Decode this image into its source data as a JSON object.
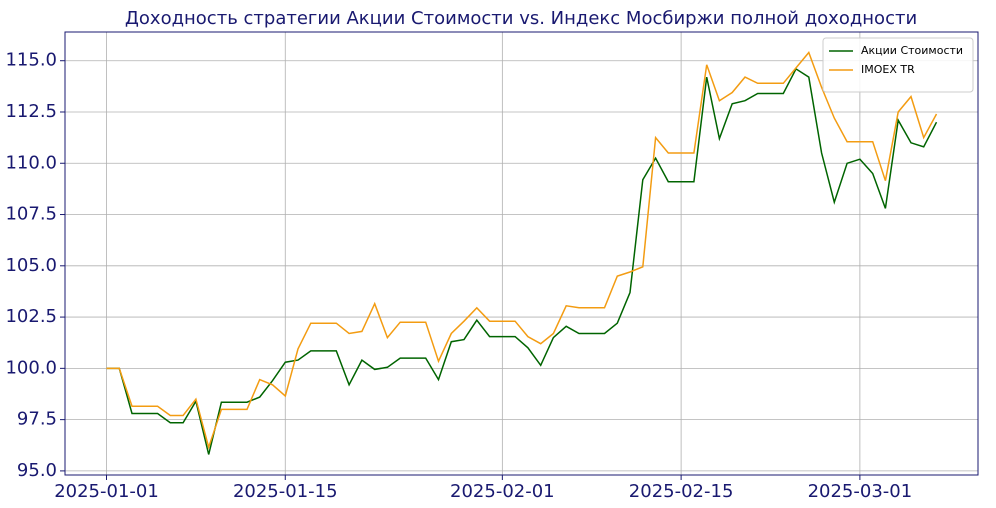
{
  "chart_data": {
    "type": "line",
    "title": "Доходность стратегии Акции Стоимости vs. Индекс Мосбиржи полной доходности",
    "x": [
      "2025-01-01",
      "2025-01-02",
      "2025-01-03",
      "2025-01-04",
      "2025-01-05",
      "2025-01-06",
      "2025-01-07",
      "2025-01-08",
      "2025-01-09",
      "2025-01-10",
      "2025-01-11",
      "2025-01-12",
      "2025-01-13",
      "2025-01-14",
      "2025-01-15",
      "2025-01-16",
      "2025-01-17",
      "2025-01-18",
      "2025-01-19",
      "2025-01-20",
      "2025-01-21",
      "2025-01-22",
      "2025-01-23",
      "2025-01-24",
      "2025-01-25",
      "2025-01-26",
      "2025-01-27",
      "2025-01-28",
      "2025-01-29",
      "2025-01-30",
      "2025-01-31",
      "2025-02-01",
      "2025-02-02",
      "2025-02-03",
      "2025-02-04",
      "2025-02-05",
      "2025-02-06",
      "2025-02-07",
      "2025-02-08",
      "2025-02-09",
      "2025-02-10",
      "2025-02-11",
      "2025-02-12",
      "2025-02-13",
      "2025-02-14",
      "2025-02-15",
      "2025-02-16",
      "2025-02-17",
      "2025-02-18",
      "2025-02-19",
      "2025-02-20",
      "2025-02-21",
      "2025-02-22",
      "2025-02-23",
      "2025-02-24",
      "2025-02-25",
      "2025-02-26",
      "2025-02-27",
      "2025-02-28",
      "2025-03-01",
      "2025-03-02",
      "2025-03-03",
      "2025-03-04",
      "2025-03-05",
      "2025-03-06",
      "2025-03-07"
    ],
    "series": [
      {
        "name": "Акции Стоимости",
        "color": "#006400",
        "values": [
          100.0,
          100.0,
          97.8,
          97.8,
          97.8,
          97.35,
          97.35,
          98.4,
          95.8,
          98.35,
          98.35,
          98.35,
          98.6,
          99.4,
          100.3,
          100.4,
          100.85,
          100.85,
          100.85,
          99.2,
          100.4,
          99.95,
          100.05,
          100.5,
          100.5,
          100.5,
          99.45,
          101.3,
          101.4,
          102.35,
          101.55,
          101.55,
          101.55,
          101.0,
          100.15,
          101.5,
          102.05,
          101.7,
          101.7,
          101.7,
          102.2,
          103.7,
          109.2,
          110.25,
          109.1,
          109.1,
          109.1,
          114.2,
          111.2,
          112.9,
          113.05,
          113.4,
          113.4,
          113.4,
          114.6,
          114.2,
          110.5,
          108.1,
          110.0,
          110.2,
          109.5,
          107.8,
          112.1,
          111.0,
          110.8,
          112.0
        ]
      },
      {
        "name": "IMOEX TR",
        "color": "#f39c12",
        "values": [
          100.0,
          100.0,
          98.15,
          98.15,
          98.15,
          97.7,
          97.7,
          98.5,
          96.15,
          98.0,
          98.0,
          98.0,
          99.45,
          99.2,
          98.65,
          100.95,
          102.2,
          102.2,
          102.2,
          101.7,
          101.8,
          103.15,
          101.5,
          102.25,
          102.25,
          102.25,
          100.35,
          101.7,
          102.3,
          102.95,
          102.3,
          102.3,
          102.3,
          101.55,
          101.2,
          101.7,
          103.05,
          102.95,
          102.95,
          102.95,
          104.5,
          104.7,
          104.95,
          111.25,
          110.5,
          110.5,
          110.5,
          114.8,
          113.05,
          113.45,
          114.2,
          113.9,
          113.9,
          113.9,
          114.65,
          115.4,
          113.7,
          112.2,
          111.05,
          111.05,
          111.05,
          109.15,
          112.5,
          113.25,
          111.25,
          112.4
        ]
      }
    ],
    "ylim": [
      94.8,
      116.4
    ],
    "yticks": [
      {
        "value": 95,
        "label": "95.0"
      },
      {
        "value": 97.5,
        "label": "97.5"
      },
      {
        "value": 100,
        "label": "100.0"
      },
      {
        "value": 102.5,
        "label": "102.5"
      },
      {
        "value": 105,
        "label": "105.0"
      },
      {
        "value": 107.5,
        "label": "107.5"
      },
      {
        "value": 110,
        "label": "110.0"
      },
      {
        "value": 112.5,
        "label": "112.5"
      },
      {
        "value": 115,
        "label": "115.0"
      }
    ],
    "xticks": [
      "2025-01-01",
      "2025-01-15",
      "2025-02-01",
      "2025-02-15",
      "2025-03-01"
    ],
    "grid": true,
    "legend": "upper right"
  }
}
